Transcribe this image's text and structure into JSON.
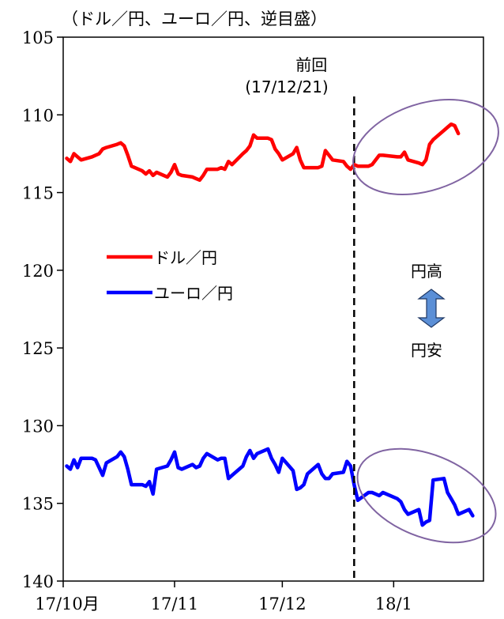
{
  "chart_data": {
    "type": "line",
    "title": "（ドル／円、ユーロ／円、逆目盛）",
    "y_axis": {
      "reversed": true,
      "ylim": [
        105,
        140
      ],
      "ticks": [
        "105",
        "110",
        "115",
        "120",
        "125",
        "130",
        "135",
        "140"
      ]
    },
    "x_axis": {
      "tick_labels": [
        "17/10月",
        "17/11",
        "17/12",
        "18/1"
      ]
    },
    "legend": {
      "placement": "middle-left",
      "items": [
        "ドル／円",
        "ユーロ／円"
      ]
    },
    "vline": {
      "x": "2017-12-21",
      "label_line1": "前回",
      "label_line2": "(17/12/21)"
    },
    "annotation": {
      "top": "円高",
      "bottom": "円安",
      "arrow_color": "#5b8fd6"
    },
    "highlight_ellipse_color": "#8064a2",
    "series": [
      {
        "name": "ドル／円",
        "color": "#ff0000",
        "x": [
          "2017-10-02",
          "2017-10-03",
          "2017-10-04",
          "2017-10-05",
          "2017-10-06",
          "2017-10-09",
          "2017-10-10",
          "2017-10-11",
          "2017-10-12",
          "2017-10-13",
          "2017-10-16",
          "2017-10-17",
          "2017-10-18",
          "2017-10-19",
          "2017-10-20",
          "2017-10-23",
          "2017-10-24",
          "2017-10-25",
          "2017-10-26",
          "2017-10-27",
          "2017-10-30",
          "2017-10-31",
          "2017-11-01",
          "2017-11-02",
          "2017-11-03",
          "2017-11-06",
          "2017-11-07",
          "2017-11-08",
          "2017-11-09",
          "2017-11-10",
          "2017-11-13",
          "2017-11-14",
          "2017-11-15",
          "2017-11-16",
          "2017-11-17",
          "2017-11-20",
          "2017-11-21",
          "2017-11-22",
          "2017-11-23",
          "2017-11-24",
          "2017-11-27",
          "2017-11-28",
          "2017-11-29",
          "2017-11-30",
          "2017-12-01",
          "2017-12-04",
          "2017-12-05",
          "2017-12-06",
          "2017-12-07",
          "2017-12-08",
          "2017-12-11",
          "2017-12-12",
          "2017-12-13",
          "2017-12-14",
          "2017-12-15",
          "2017-12-18",
          "2017-12-19",
          "2017-12-20",
          "2017-12-21",
          "2017-12-22",
          "2017-12-25",
          "2017-12-26",
          "2017-12-27",
          "2017-12-28",
          "2017-12-29",
          "2018-01-02",
          "2018-01-03",
          "2018-01-04",
          "2018-01-05",
          "2018-01-08",
          "2018-01-09",
          "2018-01-10",
          "2018-01-11",
          "2018-01-12",
          "2018-01-15",
          "2018-01-16",
          "2018-01-17",
          "2018-01-18",
          "2018-01-19",
          "2018-01-22",
          "2018-01-23",
          "2018-01-24"
        ],
        "y": [
          112.8,
          113.0,
          112.5,
          112.7,
          112.9,
          112.7,
          112.6,
          112.5,
          112.2,
          112.1,
          111.9,
          111.8,
          112.0,
          112.6,
          113.3,
          113.6,
          113.8,
          113.6,
          113.9,
          113.7,
          114.0,
          113.7,
          113.2,
          113.8,
          113.9,
          114.0,
          114.1,
          114.2,
          113.9,
          113.5,
          113.5,
          113.4,
          113.5,
          113.0,
          113.2,
          112.5,
          112.3,
          112.0,
          111.3,
          111.5,
          111.5,
          111.6,
          112.2,
          112.5,
          112.9,
          112.5,
          112.1,
          112.9,
          113.4,
          113.4,
          113.4,
          113.3,
          112.3,
          112.6,
          112.9,
          113.0,
          113.3,
          113.5,
          113.2,
          113.3,
          113.3,
          113.2,
          112.9,
          112.6,
          112.6,
          112.7,
          112.7,
          112.4,
          112.9,
          113.1,
          113.2,
          112.9,
          111.9,
          111.6,
          111.0,
          110.8,
          110.6,
          110.7,
          111.2,
          null,
          null,
          null
        ]
      },
      {
        "name": "ユーロ／円",
        "color": "#0000ff",
        "x": [
          "2017-10-02",
          "2017-10-03",
          "2017-10-04",
          "2017-10-05",
          "2017-10-06",
          "2017-10-09",
          "2017-10-10",
          "2017-10-11",
          "2017-10-12",
          "2017-10-13",
          "2017-10-16",
          "2017-10-17",
          "2017-10-18",
          "2017-10-19",
          "2017-10-20",
          "2017-10-23",
          "2017-10-24",
          "2017-10-25",
          "2017-10-26",
          "2017-10-27",
          "2017-10-30",
          "2017-10-31",
          "2017-11-01",
          "2017-11-02",
          "2017-11-03",
          "2017-11-06",
          "2017-11-07",
          "2017-11-08",
          "2017-11-09",
          "2017-11-10",
          "2017-11-13",
          "2017-11-14",
          "2017-11-15",
          "2017-11-16",
          "2017-11-17",
          "2017-11-20",
          "2017-11-21",
          "2017-11-22",
          "2017-11-23",
          "2017-11-24",
          "2017-11-27",
          "2017-11-28",
          "2017-11-29",
          "2017-11-30",
          "2017-12-01",
          "2017-12-04",
          "2017-12-05",
          "2017-12-06",
          "2017-12-07",
          "2017-12-08",
          "2017-12-11",
          "2017-12-12",
          "2017-12-13",
          "2017-12-14",
          "2017-12-15",
          "2017-12-18",
          "2017-12-19",
          "2017-12-20",
          "2017-12-21",
          "2017-12-22",
          "2017-12-25",
          "2017-12-26",
          "2017-12-27",
          "2017-12-28",
          "2017-12-29",
          "2018-01-02",
          "2018-01-03",
          "2018-01-04",
          "2018-01-05",
          "2018-01-08",
          "2018-01-09",
          "2018-01-10",
          "2018-01-11",
          "2018-01-12",
          "2018-01-15",
          "2018-01-16",
          "2018-01-17",
          "2018-01-18",
          "2018-01-19",
          "2018-01-22",
          "2018-01-23",
          "2018-01-24"
        ],
        "y": [
          132.6,
          132.8,
          132.2,
          132.7,
          132.1,
          132.1,
          132.2,
          132.7,
          133.2,
          132.4,
          132.0,
          131.7,
          132.0,
          132.8,
          133.8,
          133.8,
          133.9,
          133.6,
          134.4,
          132.8,
          132.6,
          132.2,
          131.7,
          132.7,
          132.8,
          132.5,
          132.7,
          132.6,
          132.1,
          131.8,
          132.2,
          132.1,
          132.1,
          133.4,
          133.2,
          132.6,
          132.0,
          131.6,
          132.1,
          131.8,
          131.5,
          132.1,
          132.5,
          133.0,
          132.1,
          132.9,
          134.1,
          134.0,
          133.8,
          133.1,
          132.5,
          133.1,
          133.4,
          133.4,
          133.1,
          133.0,
          132.3,
          132.6,
          133.8,
          134.8,
          134.3,
          134.3,
          134.4,
          134.5,
          134.3,
          134.7,
          134.9,
          135.4,
          135.7,
          135.4,
          136.4,
          136.2,
          136.1,
          133.5,
          133.4,
          134.3,
          134.7,
          135.1,
          135.7,
          135.4,
          135.8,
          null
        ]
      }
    ]
  }
}
